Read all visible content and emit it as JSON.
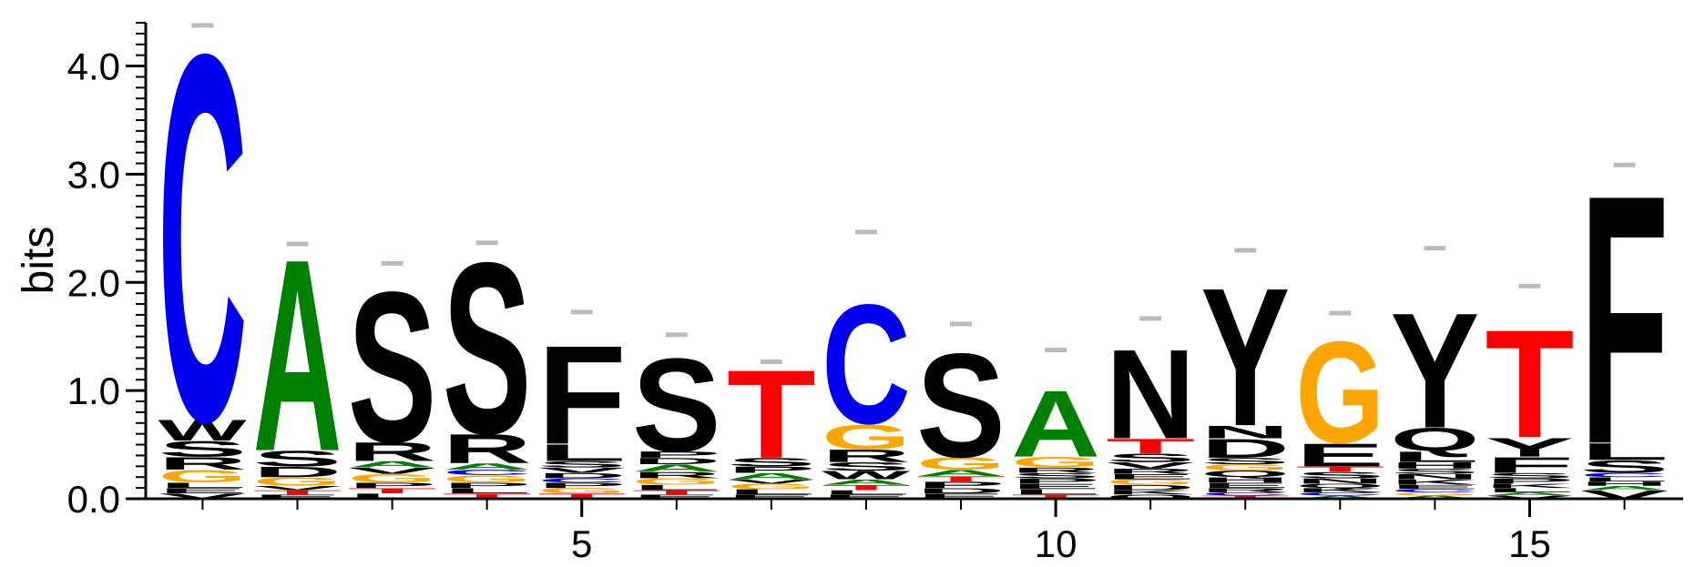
{
  "chart_data": {
    "type": "sequence-logo",
    "title": "",
    "xlabel": "",
    "ylabel": "bits",
    "ylim": [
      0,
      4.4
    ],
    "y_ticks": [
      0.0,
      1.0,
      2.0,
      3.0,
      4.0
    ],
    "y_tick_labels": [
      "0.0",
      "1.0",
      "2.0",
      "3.0",
      "4.0"
    ],
    "x_range": [
      0.4,
      16.6
    ],
    "x_ticks": [
      5,
      10,
      15
    ],
    "x_tick_labels": [
      "5",
      "10",
      "15"
    ],
    "colors": {
      "C": "#0000ee",
      "A": "#008000",
      "G": "#ffa500",
      "T": "#ff0000",
      "S": "#000000",
      "F": "#000000",
      "N": "#000000",
      "Y": "#000000",
      "Q": "#000000",
      "R": "#000000",
      "W": "#000000",
      "L": "#000000",
      "D": "#000000",
      "E": "#000000",
      "P": "#000000",
      "V": "#000000",
      "K": "#000000",
      "I": "#000000",
      "H": "#000000",
      "M": "#000000"
    },
    "positions": [
      {
        "pos": 1,
        "letters": [
          {
            "letter": "V",
            "height": 0.05
          },
          {
            "letter": "E",
            "height": 0.05
          },
          {
            "letter": "L",
            "height": 0.05
          },
          {
            "letter": "G",
            "height": 0.12
          },
          {
            "letter": "R",
            "height": 0.12
          },
          {
            "letter": "S",
            "height": 0.15
          },
          {
            "letter": "W",
            "height": 0.2
          },
          {
            "letter": "C",
            "height": 3.53
          }
        ]
      },
      {
        "pos": 2,
        "letters": [
          {
            "letter": "E",
            "height": 0.04
          },
          {
            "letter": "T",
            "height": 0.04
          },
          {
            "letter": "V",
            "height": 0.04
          },
          {
            "letter": "G",
            "height": 0.08
          },
          {
            "letter": "D",
            "height": 0.1
          },
          {
            "letter": "S",
            "height": 0.15
          },
          {
            "letter": "A",
            "height": 1.85
          }
        ]
      },
      {
        "pos": 3,
        "letters": [
          {
            "letter": "L",
            "height": 0.05
          },
          {
            "letter": "T",
            "height": 0.05
          },
          {
            "letter": "P",
            "height": 0.05
          },
          {
            "letter": "G",
            "height": 0.08
          },
          {
            "letter": "V",
            "height": 0.06
          },
          {
            "letter": "A",
            "height": 0.06
          },
          {
            "letter": "R",
            "height": 0.18
          },
          {
            "letter": "S",
            "height": 1.45
          }
        ]
      },
      {
        "pos": 4,
        "letters": [
          {
            "letter": "T",
            "height": 0.05
          },
          {
            "letter": "L",
            "height": 0.05
          },
          {
            "letter": "P",
            "height": 0.05
          },
          {
            "letter": "G",
            "height": 0.07
          },
          {
            "letter": "C",
            "height": 0.05
          },
          {
            "letter": "A",
            "height": 0.06
          },
          {
            "letter": "R",
            "height": 0.28
          },
          {
            "letter": "S",
            "height": 1.65
          }
        ]
      },
      {
        "pos": 5,
        "letters": [
          {
            "letter": "T",
            "height": 0.05
          },
          {
            "letter": "G",
            "height": 0.05
          },
          {
            "letter": "P",
            "height": 0.05
          },
          {
            "letter": "C",
            "height": 0.04
          },
          {
            "letter": "D",
            "height": 0.05
          },
          {
            "letter": "V",
            "height": 0.05
          },
          {
            "letter": "S",
            "height": 0.06
          },
          {
            "letter": "L",
            "height": 0.16
          },
          {
            "letter": "F",
            "height": 0.95
          }
        ]
      },
      {
        "pos": 6,
        "letters": [
          {
            "letter": "E",
            "height": 0.04
          },
          {
            "letter": "T",
            "height": 0.04
          },
          {
            "letter": "L",
            "height": 0.05
          },
          {
            "letter": "G",
            "height": 0.06
          },
          {
            "letter": "R",
            "height": 0.06
          },
          {
            "letter": "A",
            "height": 0.07
          },
          {
            "letter": "D",
            "height": 0.06
          },
          {
            "letter": "P",
            "height": 0.06
          },
          {
            "letter": "S",
            "height": 0.9
          }
        ]
      },
      {
        "pos": 7,
        "letters": [
          {
            "letter": "E",
            "height": 0.04
          },
          {
            "letter": "L",
            "height": 0.05
          },
          {
            "letter": "G",
            "height": 0.05
          },
          {
            "letter": "V",
            "height": 0.04
          },
          {
            "letter": "A",
            "height": 0.06
          },
          {
            "letter": "P",
            "height": 0.06
          },
          {
            "letter": "S",
            "height": 0.08
          },
          {
            "letter": "T",
            "height": 0.85
          }
        ]
      },
      {
        "pos": 8,
        "letters": [
          {
            "letter": "E",
            "height": 0.04
          },
          {
            "letter": "L",
            "height": 0.04
          },
          {
            "letter": "T",
            "height": 0.05
          },
          {
            "letter": "A",
            "height": 0.05
          },
          {
            "letter": "W",
            "height": 0.08
          },
          {
            "letter": "S",
            "height": 0.08
          },
          {
            "letter": "R",
            "height": 0.12
          },
          {
            "letter": "G",
            "height": 0.24
          },
          {
            "letter": "C",
            "height": 1.15
          }
        ]
      },
      {
        "pos": 9,
        "letters": [
          {
            "letter": "E",
            "height": 0.05
          },
          {
            "letter": "D",
            "height": 0.05
          },
          {
            "letter": "P",
            "height": 0.06
          },
          {
            "letter": "T",
            "height": 0.05
          },
          {
            "letter": "A",
            "height": 0.06
          },
          {
            "letter": "G",
            "height": 0.12
          },
          {
            "letter": "S",
            "height": 1.0
          }
        ]
      },
      {
        "pos": 10,
        "letters": [
          {
            "letter": "T",
            "height": 0.04
          },
          {
            "letter": "L",
            "height": 0.05
          },
          {
            "letter": "E",
            "height": 0.05
          },
          {
            "letter": "P",
            "height": 0.05
          },
          {
            "letter": "S",
            "height": 0.05
          },
          {
            "letter": "R",
            "height": 0.05
          },
          {
            "letter": "G",
            "height": 0.1
          },
          {
            "letter": "A",
            "height": 0.64
          }
        ]
      },
      {
        "pos": 11,
        "letters": [
          {
            "letter": "Q",
            "height": 0.04
          },
          {
            "letter": "K",
            "height": 0.04
          },
          {
            "letter": "D",
            "height": 0.05
          },
          {
            "letter": "G",
            "height": 0.05
          },
          {
            "letter": "E",
            "height": 0.05
          },
          {
            "letter": "R",
            "height": 0.05
          },
          {
            "letter": "V",
            "height": 0.06
          },
          {
            "letter": "S",
            "height": 0.08
          },
          {
            "letter": "T",
            "height": 0.14
          },
          {
            "letter": "N",
            "height": 0.86
          }
        ]
      },
      {
        "pos": 12,
        "letters": [
          {
            "letter": "T",
            "height": 0.03
          },
          {
            "letter": "C",
            "height": 0.03
          },
          {
            "letter": "R",
            "height": 0.04
          },
          {
            "letter": "E",
            "height": 0.05
          },
          {
            "letter": "H",
            "height": 0.05
          },
          {
            "letter": "Q",
            "height": 0.06
          },
          {
            "letter": "G",
            "height": 0.06
          },
          {
            "letter": "S",
            "height": 0.06
          },
          {
            "letter": "D",
            "height": 0.18
          },
          {
            "letter": "N",
            "height": 0.12
          },
          {
            "letter": "Y",
            "height": 1.33
          }
        ]
      },
      {
        "pos": 13,
        "letters": [
          {
            "letter": "A",
            "height": 0.03
          },
          {
            "letter": "C",
            "height": 0.03
          },
          {
            "letter": "K",
            "height": 0.04
          },
          {
            "letter": "Q",
            "height": 0.04
          },
          {
            "letter": "N",
            "height": 0.05
          },
          {
            "letter": "S",
            "height": 0.06
          },
          {
            "letter": "T",
            "height": 0.05
          },
          {
            "letter": "E",
            "height": 0.22
          },
          {
            "letter": "G",
            "height": 0.98
          }
        ]
      },
      {
        "pos": 14,
        "letters": [
          {
            "letter": "A",
            "height": 0.03
          },
          {
            "letter": "G",
            "height": 0.03
          },
          {
            "letter": "C",
            "height": 0.03
          },
          {
            "letter": "E",
            "height": 0.04
          },
          {
            "letter": "K",
            "height": 0.05
          },
          {
            "letter": "N",
            "height": 0.05
          },
          {
            "letter": "S",
            "height": 0.05
          },
          {
            "letter": "H",
            "height": 0.06
          },
          {
            "letter": "L",
            "height": 0.1
          },
          {
            "letter": "Q",
            "height": 0.22
          },
          {
            "letter": "Y",
            "height": 1.11
          }
        ]
      },
      {
        "pos": 15,
        "letters": [
          {
            "letter": "V",
            "height": 0.03
          },
          {
            "letter": "A",
            "height": 0.03
          },
          {
            "letter": "L",
            "height": 0.04
          },
          {
            "letter": "K",
            "height": 0.04
          },
          {
            "letter": "P",
            "height": 0.05
          },
          {
            "letter": "S",
            "height": 0.05
          },
          {
            "letter": "F",
            "height": 0.15
          },
          {
            "letter": "Y",
            "height": 0.18
          },
          {
            "letter": "T",
            "height": 1.04
          }
        ]
      },
      {
        "pos": 16,
        "letters": [
          {
            "letter": "V",
            "height": 0.08
          },
          {
            "letter": "A",
            "height": 0.04
          },
          {
            "letter": "H",
            "height": 0.04
          },
          {
            "letter": "L",
            "height": 0.04
          },
          {
            "letter": "C",
            "height": 0.04
          },
          {
            "letter": "S",
            "height": 0.12
          },
          {
            "letter": "L",
            "height": 0.16
          },
          {
            "letter": "F",
            "height": 2.4
          }
        ]
      }
    ],
    "error_bars": [
      4.38,
      2.36,
      2.18,
      2.37,
      1.73,
      1.52,
      1.27,
      2.47,
      1.62,
      1.38,
      1.67,
      2.3,
      1.72,
      2.32,
      1.97,
      3.09
    ]
  }
}
